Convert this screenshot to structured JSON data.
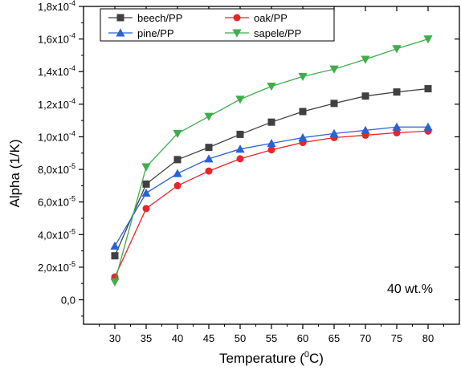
{
  "chart_data": {
    "type": "line",
    "xlabel": "Temperature (",
    "xlabel_sup": "0",
    "xlabel_tail": "C)",
    "ylabel": "Alpha (1/K)",
    "annotation": "40 wt.%",
    "x": [
      30,
      35,
      40,
      45,
      50,
      55,
      60,
      65,
      70,
      75,
      80
    ],
    "xlim": [
      25,
      85
    ],
    "ylim": [
      -1.5e-05,
      0.00018
    ],
    "xticks": [
      30,
      35,
      40,
      45,
      50,
      55,
      60,
      65,
      70,
      75,
      80
    ],
    "xtick_labels": [
      "30",
      "35",
      "40",
      "45",
      "50",
      "55",
      "60",
      "65",
      "70",
      "75",
      "80"
    ],
    "yticks": [
      0,
      2e-05,
      4e-05,
      6e-05,
      8e-05,
      0.0001,
      0.00012,
      0.00014,
      0.00016,
      0.00018
    ],
    "ytick_mantissa": [
      "0,0",
      "2,0x10",
      "4,0x10",
      "6,0x10",
      "8,0x10",
      "1,0x10",
      "1,2x10",
      "1,4x10",
      "1,6x10",
      "1,8x10"
    ],
    "ytick_exp": [
      "",
      "-5",
      "-5",
      "-5",
      "-5",
      "-4",
      "-4",
      "-4",
      "-4",
      "-4"
    ],
    "legend_position": "top",
    "grid": false,
    "series": [
      {
        "name": "beech/PP",
        "color": "#404040",
        "marker": "square",
        "values": [
          2.7e-05,
          7.1e-05,
          8.6e-05,
          9.35e-05,
          0.0001015,
          0.000109,
          0.0001155,
          0.0001205,
          0.000125,
          0.0001275,
          0.0001295
        ]
      },
      {
        "name": "oak/PP",
        "color": "#e8252a",
        "marker": "circle",
        "values": [
          1.4e-05,
          5.6e-05,
          7e-05,
          7.9e-05,
          8.65e-05,
          9.2e-05,
          9.65e-05,
          9.95e-05,
          0.000101,
          0.0001025,
          0.0001035
        ]
      },
      {
        "name": "pine/PP",
        "color": "#2a62d6",
        "marker": "triangle-up",
        "values": [
          3.3e-05,
          6.55e-05,
          7.75e-05,
          8.65e-05,
          9.25e-05,
          9.6e-05,
          9.95e-05,
          0.000102,
          0.000104,
          0.000106,
          0.000106
        ]
      },
      {
        "name": "sapele/PP",
        "color": "#3dae4a",
        "marker": "triangle-down",
        "values": [
          1.1e-05,
          8.15e-05,
          0.000102,
          0.0001125,
          0.000123,
          0.000131,
          0.000137,
          0.0001415,
          0.0001475,
          0.000154,
          0.00016
        ]
      }
    ]
  }
}
